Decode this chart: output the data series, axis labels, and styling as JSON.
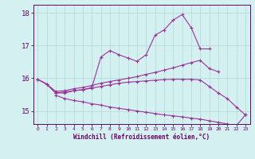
{
  "xlabel": "Windchill (Refroidissement éolien,°C)",
  "x": [
    0,
    1,
    2,
    3,
    4,
    5,
    6,
    7,
    8,
    9,
    10,
    11,
    12,
    13,
    14,
    15,
    16,
    17,
    18,
    19,
    20,
    21,
    22,
    23
  ],
  "line1": [
    15.97,
    15.82,
    15.55,
    15.55,
    15.62,
    15.65,
    15.72,
    16.65,
    16.85,
    16.72,
    16.62,
    16.52,
    16.72,
    17.32,
    17.48,
    17.78,
    17.95,
    17.55,
    16.9,
    16.9,
    null,
    null,
    null,
    null
  ],
  "line2": [
    15.97,
    15.82,
    15.6,
    15.62,
    15.68,
    15.72,
    15.78,
    15.85,
    15.9,
    15.95,
    16.0,
    16.05,
    16.12,
    16.18,
    16.25,
    16.32,
    16.4,
    16.48,
    16.55,
    16.3,
    16.2,
    null,
    null,
    null
  ],
  "line3": [
    15.97,
    15.82,
    15.55,
    15.58,
    15.62,
    15.65,
    15.7,
    15.75,
    15.8,
    15.85,
    15.88,
    15.9,
    15.92,
    15.94,
    15.96,
    15.97,
    15.97,
    15.97,
    15.95,
    15.75,
    15.55,
    15.38,
    15.12,
    14.88
  ],
  "line4": [
    null,
    null,
    15.48,
    15.38,
    15.32,
    15.28,
    15.22,
    15.18,
    15.12,
    15.08,
    15.04,
    15.0,
    14.96,
    14.92,
    14.88,
    14.85,
    14.82,
    14.78,
    14.75,
    14.7,
    14.65,
    14.6,
    14.55,
    14.88
  ],
  "ylim": [
    14.6,
    18.25
  ],
  "yticks": [
    15,
    16,
    17,
    18
  ],
  "xticks": [
    0,
    1,
    2,
    3,
    4,
    5,
    6,
    7,
    8,
    9,
    10,
    11,
    12,
    13,
    14,
    15,
    16,
    17,
    18,
    19,
    20,
    21,
    22,
    23
  ],
  "line_color": "#993399",
  "bg_color": "#d4f0f0",
  "grid_color": "#b0d8d8",
  "tick_color": "#660066",
  "marker": "+",
  "marker_size": 3,
  "line_width": 0.8
}
